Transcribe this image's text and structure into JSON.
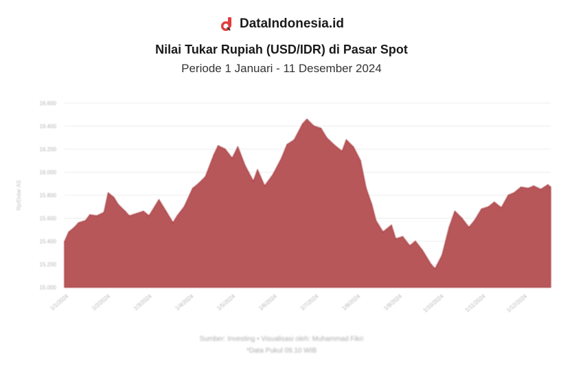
{
  "header": {
    "brand_name": "DataIndonesia.id",
    "logo_icon": "dataindonesia-logo-icon"
  },
  "footer": {
    "source": "Sumber: Investing • Visualisasi oleh: Muhammad Fikri",
    "note": "*Data Pukul 09.10 WIB"
  },
  "colors": {
    "area": "#b8575a",
    "area_stroke": "#a53a3f",
    "accent": "#e23b3b"
  },
  "chart_data": {
    "type": "area",
    "title": "Nilai Tukar Rupiah (USD/IDR) di Pasar Spot",
    "subtitle": "Periode 1 Januari - 11 Desember 2024",
    "ylabel": "Rp/Dolar AS",
    "ylim": [
      15000,
      16600
    ],
    "yticks": [
      "15.000",
      "15.200",
      "15.400",
      "15.600",
      "15.800",
      "16.000",
      "16.200",
      "16.400",
      "16.600"
    ],
    "xticks": [
      "1/1/2024",
      "1/2/2024",
      "1/3/2024",
      "1/4/2024",
      "1/5/2024",
      "1/6/2024",
      "1/7/2024",
      "1/8/2024",
      "1/9/2024",
      "1/10/2024",
      "1/11/2024",
      "1/12/2024"
    ],
    "grid": true,
    "legend": "none",
    "series": [
      {
        "x": [
          "2024-01-01",
          "2024-01-04",
          "2024-01-08",
          "2024-01-11",
          "2024-01-16",
          "2024-01-19",
          "2024-01-24",
          "2024-01-29",
          "2024-02-01",
          "2024-02-05",
          "2024-02-08",
          "2024-02-13",
          "2024-02-16",
          "2024-02-21",
          "2024-02-26",
          "2024-03-01",
          "2024-03-05",
          "2024-03-08",
          "2024-03-13",
          "2024-03-18",
          "2024-03-21",
          "2024-03-26",
          "2024-04-01",
          "2024-04-05",
          "2024-04-10",
          "2024-04-16",
          "2024-04-19",
          "2024-04-24",
          "2024-04-29",
          "2024-05-03",
          "2024-05-08",
          "2024-05-14",
          "2024-05-17",
          "2024-05-22",
          "2024-05-28",
          "2024-06-03",
          "2024-06-07",
          "2024-06-12",
          "2024-06-18",
          "2024-06-21",
          "2024-06-26",
          "2024-07-01",
          "2024-07-05",
          "2024-07-10",
          "2024-07-16",
          "2024-07-19",
          "2024-07-24",
          "2024-07-29",
          "2024-08-02",
          "2024-08-06",
          "2024-08-09",
          "2024-08-14",
          "2024-08-20",
          "2024-08-23",
          "2024-08-28",
          "2024-09-02",
          "2024-09-06",
          "2024-09-11",
          "2024-09-17",
          "2024-09-20",
          "2024-09-25",
          "2024-09-30",
          "2024-10-04",
          "2024-10-09",
          "2024-10-14",
          "2024-10-18",
          "2024-10-23",
          "2024-10-28",
          "2024-11-01",
          "2024-11-06",
          "2024-11-11",
          "2024-11-15",
          "2024-11-20",
          "2024-11-25",
          "2024-11-29",
          "2024-12-04",
          "2024-12-09",
          "2024-12-11"
        ],
        "values": [
          15395,
          15480,
          15520,
          15560,
          15580,
          15630,
          15620,
          15650,
          15820,
          15780,
          15720,
          15660,
          15620,
          15640,
          15660,
          15620,
          15700,
          15760,
          15660,
          15560,
          15620,
          15700,
          15860,
          15900,
          15960,
          16150,
          16230,
          16200,
          16120,
          16220,
          16060,
          15920,
          16020,
          15880,
          15980,
          16120,
          16240,
          16280,
          16420,
          16460,
          16400,
          16380,
          16300,
          16240,
          16180,
          16280,
          16220,
          16100,
          15860,
          15720,
          15580,
          15480,
          15540,
          15420,
          15440,
          15360,
          15400,
          15320,
          15200,
          15160,
          15280,
          15520,
          15660,
          15600,
          15520,
          15580,
          15680,
          15700,
          15740,
          15690,
          15800,
          15820,
          15870,
          15860,
          15880,
          15850,
          15890,
          15870
        ]
      }
    ]
  }
}
